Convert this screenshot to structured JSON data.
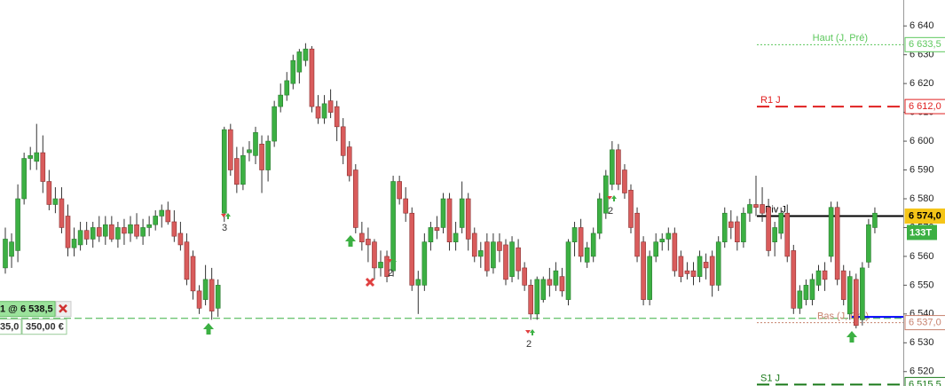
{
  "chart_data": {
    "type": "candlestick",
    "ylim": [
      6515,
      6649
    ],
    "yticks": [
      {
        "value": 6520,
        "label": "6 520"
      },
      {
        "value": 6530,
        "label": "6 530"
      },
      {
        "value": 6540,
        "label": "6 540"
      },
      {
        "value": 6550,
        "label": "6 550"
      },
      {
        "value": 6560,
        "label": "6 560"
      },
      {
        "value": 6570,
        "label": "6 570"
      },
      {
        "value": 6580,
        "label": "6 580"
      },
      {
        "value": 6590,
        "label": "6 590"
      },
      {
        "value": 6600,
        "label": "6 600"
      },
      {
        "value": 6610,
        "label": "6 610"
      },
      {
        "value": 6620,
        "label": "6 620"
      },
      {
        "value": 6630,
        "label": "6 630"
      },
      {
        "value": 6640,
        "label": "6 640"
      }
    ],
    "up_color": "#3cb043",
    "down_color": "#d95c5c",
    "ohlc": [
      [
        6556,
        6570,
        6554,
        6566
      ],
      [
        6560,
        6568,
        6556,
        6565
      ],
      [
        6562,
        6585,
        6558,
        6580
      ],
      [
        6580,
        6596,
        6578,
        6594
      ],
      [
        6594,
        6598,
        6590,
        6595
      ],
      [
        6593,
        6606,
        6590,
        6596
      ],
      [
        6596,
        6602,
        6582,
        6586
      ],
      [
        6586,
        6590,
        6576,
        6578
      ],
      [
        6578,
        6584,
        6575,
        6580
      ],
      [
        6580,
        6584,
        6568,
        6570
      ],
      [
        6574,
        6578,
        6560,
        6563
      ],
      [
        6563,
        6570,
        6560,
        6566
      ],
      [
        6564,
        6572,
        6562,
        6569
      ],
      [
        6569,
        6572,
        6564,
        6566
      ],
      [
        6566,
        6572,
        6563,
        6570
      ],
      [
        6570,
        6574,
        6565,
        6567
      ],
      [
        6567,
        6574,
        6564,
        6571
      ],
      [
        6571,
        6574,
        6565,
        6566
      ],
      [
        6566,
        6572,
        6563,
        6570
      ],
      [
        6570,
        6573,
        6564,
        6568
      ],
      [
        6568,
        6574,
        6565,
        6571
      ],
      [
        6571,
        6575,
        6566,
        6567
      ],
      [
        6567,
        6573,
        6564,
        6570
      ],
      [
        6570,
        6574,
        6567,
        6571
      ],
      [
        6571,
        6576,
        6569,
        6574
      ],
      [
        6574,
        6578,
        6570,
        6576
      ],
      [
        6576,
        6579,
        6571,
        6572
      ],
      [
        6572,
        6576,
        6565,
        6567
      ],
      [
        6568,
        6572,
        6562,
        6564
      ],
      [
        6565,
        6568,
        6550,
        6552
      ],
      [
        6560,
        6562,
        6545,
        6548
      ],
      [
        6548,
        6550,
        6540,
        6542
      ],
      [
        6545,
        6557,
        6543,
        6552
      ],
      [
        6552,
        6556,
        6538,
        6541
      ],
      [
        6542,
        6552,
        6539,
        6550
      ],
      [
        6575,
        6605,
        6572,
        6604
      ],
      [
        6604,
        6606,
        6588,
        6590
      ],
      [
        6594,
        6598,
        6582,
        6585
      ],
      [
        6585,
        6598,
        6583,
        6595
      ],
      [
        6596,
        6600,
        6593,
        6597
      ],
      [
        6595,
        6605,
        6592,
        6603
      ],
      [
        6599,
        6602,
        6582,
        6590
      ],
      [
        6590,
        6602,
        6586,
        6600
      ],
      [
        6600,
        6614,
        6598,
        6612
      ],
      [
        6612,
        6620,
        6610,
        6616
      ],
      [
        6616,
        6624,
        6614,
        6621
      ],
      [
        6620,
        6630,
        6618,
        6628
      ],
      [
        6624,
        6632,
        6620,
        6631
      ],
      [
        6628,
        6634,
        6626,
        6632
      ],
      [
        6632,
        6633,
        6610,
        6612
      ],
      [
        6612,
        6616,
        6606,
        6608
      ],
      [
        6608,
        6616,
        6606,
        6613
      ],
      [
        6614,
        6618,
        6608,
        6610
      ],
      [
        6612,
        6614,
        6600,
        6605
      ],
      [
        6605,
        6608,
        6592,
        6595
      ],
      [
        6598,
        6600,
        6586,
        6588
      ],
      [
        6590,
        6592,
        6568,
        6570
      ],
      [
        6568,
        6572,
        6562,
        6565
      ],
      [
        6566,
        6570,
        6558,
        6564
      ],
      [
        6565,
        6566,
        6552,
        6556
      ],
      [
        6556,
        6562,
        6553,
        6558
      ],
      [
        6560,
        6562,
        6551,
        6553
      ],
      [
        6555,
        6588,
        6553,
        6586
      ],
      [
        6586,
        6588,
        6578,
        6580
      ],
      [
        6580,
        6584,
        6572,
        6575
      ],
      [
        6575,
        6577,
        6548,
        6550
      ],
      [
        6550,
        6555,
        6540,
        6552
      ],
      [
        6550,
        6568,
        6548,
        6565
      ],
      [
        6565,
        6572,
        6562,
        6570
      ],
      [
        6570,
        6574,
        6566,
        6569
      ],
      [
        6570,
        6582,
        6568,
        6580
      ],
      [
        6580,
        6582,
        6562,
        6565
      ],
      [
        6565,
        6572,
        6562,
        6568
      ],
      [
        6570,
        6586,
        6568,
        6580
      ],
      [
        6580,
        6582,
        6562,
        6566
      ],
      [
        6568,
        6570,
        6558,
        6560
      ],
      [
        6560,
        6565,
        6556,
        6562
      ],
      [
        6565,
        6568,
        6553,
        6555
      ],
      [
        6556,
        6568,
        6554,
        6565
      ],
      [
        6565,
        6568,
        6558,
        6562
      ],
      [
        6564,
        6566,
        6550,
        6552
      ],
      [
        6553,
        6567,
        6551,
        6565
      ],
      [
        6563,
        6566,
        6552,
        6555
      ],
      [
        6556,
        6558,
        6548,
        6550
      ],
      [
        6550,
        6552,
        6538,
        6540
      ],
      [
        6540,
        6553,
        6538,
        6552
      ],
      [
        6545,
        6553,
        6544,
        6552
      ],
      [
        6552,
        6556,
        6546,
        6550
      ],
      [
        6550,
        6558,
        6548,
        6555
      ],
      [
        6553,
        6556,
        6546,
        6548
      ],
      [
        6545,
        6566,
        6543,
        6565
      ],
      [
        6565,
        6572,
        6560,
        6570
      ],
      [
        6570,
        6573,
        6558,
        6560
      ],
      [
        6558,
        6565,
        6556,
        6563
      ],
      [
        6560,
        6570,
        6558,
        6568
      ],
      [
        6568,
        6582,
        6566,
        6580
      ],
      [
        6575,
        6590,
        6573,
        6588
      ],
      [
        6585,
        6600,
        6583,
        6597
      ],
      [
        6597,
        6599,
        6583,
        6585
      ],
      [
        6590,
        6592,
        6580,
        6582
      ],
      [
        6583,
        6585,
        6568,
        6570
      ],
      [
        6575,
        6577,
        6558,
        6560
      ],
      [
        6565,
        6567,
        6543,
        6545
      ],
      [
        6545,
        6562,
        6543,
        6560
      ],
      [
        6560,
        6568,
        6558,
        6565
      ],
      [
        6565,
        6568,
        6562,
        6566
      ],
      [
        6566,
        6570,
        6562,
        6568
      ],
      [
        6568,
        6570,
        6553,
        6555
      ],
      [
        6560,
        6562,
        6551,
        6553
      ],
      [
        6555,
        6558,
        6552,
        6554
      ],
      [
        6555,
        6558,
        6550,
        6553
      ],
      [
        6553,
        6562,
        6551,
        6560
      ],
      [
        6558,
        6561,
        6552,
        6556
      ],
      [
        6560,
        6562,
        6546,
        6550
      ],
      [
        6550,
        6567,
        6548,
        6565
      ],
      [
        6565,
        6577,
        6563,
        6575
      ],
      [
        6572,
        6576,
        6566,
        6570
      ],
      [
        6572,
        6574,
        6562,
        6565
      ],
      [
        6565,
        6577,
        6563,
        6575
      ],
      [
        6575,
        6580,
        6572,
        6578
      ],
      [
        6578,
        6588,
        6574,
        6577
      ],
      [
        6578,
        6584,
        6572,
        6575
      ],
      [
        6577,
        6580,
        6560,
        6562
      ],
      [
        6565,
        6572,
        6560,
        6570
      ],
      [
        6568,
        6577,
        6566,
        6575
      ],
      [
        6575,
        6578,
        6558,
        6560
      ],
      [
        6562,
        6564,
        6540,
        6542
      ],
      [
        6542,
        6550,
        6540,
        6548
      ],
      [
        6545,
        6552,
        6543,
        6550
      ],
      [
        6545,
        6554,
        6543,
        6552
      ],
      [
        6550,
        6557,
        6548,
        6555
      ],
      [
        6555,
        6558,
        6548,
        6552
      ],
      [
        6560,
        6579,
        6558,
        6577
      ],
      [
        6577,
        6579,
        6550,
        6552
      ],
      [
        6555,
        6557,
        6543,
        6545
      ],
      [
        6540,
        6555,
        6538,
        6553
      ],
      [
        6552,
        6554,
        6535,
        6536
      ],
      [
        6538,
        6558,
        6536,
        6556
      ],
      [
        6558,
        6573,
        6556,
        6571
      ],
      [
        6570,
        6577,
        6568,
        6575
      ]
    ],
    "levels": [
      {
        "name": "Haut (J, Pré)",
        "value": 6633.5,
        "label": "6 633,5",
        "color": "#5cc85c",
        "style": "dotted"
      },
      {
        "name": "R1 J",
        "value": 6612,
        "label": "6 612,0",
        "color": "#e02020",
        "style": "dashed"
      },
      {
        "name": "Piv J",
        "value": 6574,
        "label": "6 574,0",
        "color": "#000000",
        "style": "solid",
        "tag_fill": "#f5c518"
      },
      {
        "name": "Bas (J, Pré)",
        "value": 6537,
        "label": "6 537,0",
        "color": "#c8826e",
        "style": "dotted"
      },
      {
        "name": "S1 J",
        "value": 6515.5,
        "label": "6 515,5",
        "color": "#1a7a1a",
        "style": "dashed"
      }
    ],
    "stop_level": {
      "value": 6539,
      "color": "#0000ff"
    },
    "volume_label": "133T",
    "position": {
      "label": "1 @ 6 538,5",
      "value": 6538.5,
      "points": "35,0",
      "pnl": "350,00 €",
      "color": "#3cb043"
    },
    "annotations": [
      "3",
      "2",
      "2",
      "2"
    ]
  }
}
